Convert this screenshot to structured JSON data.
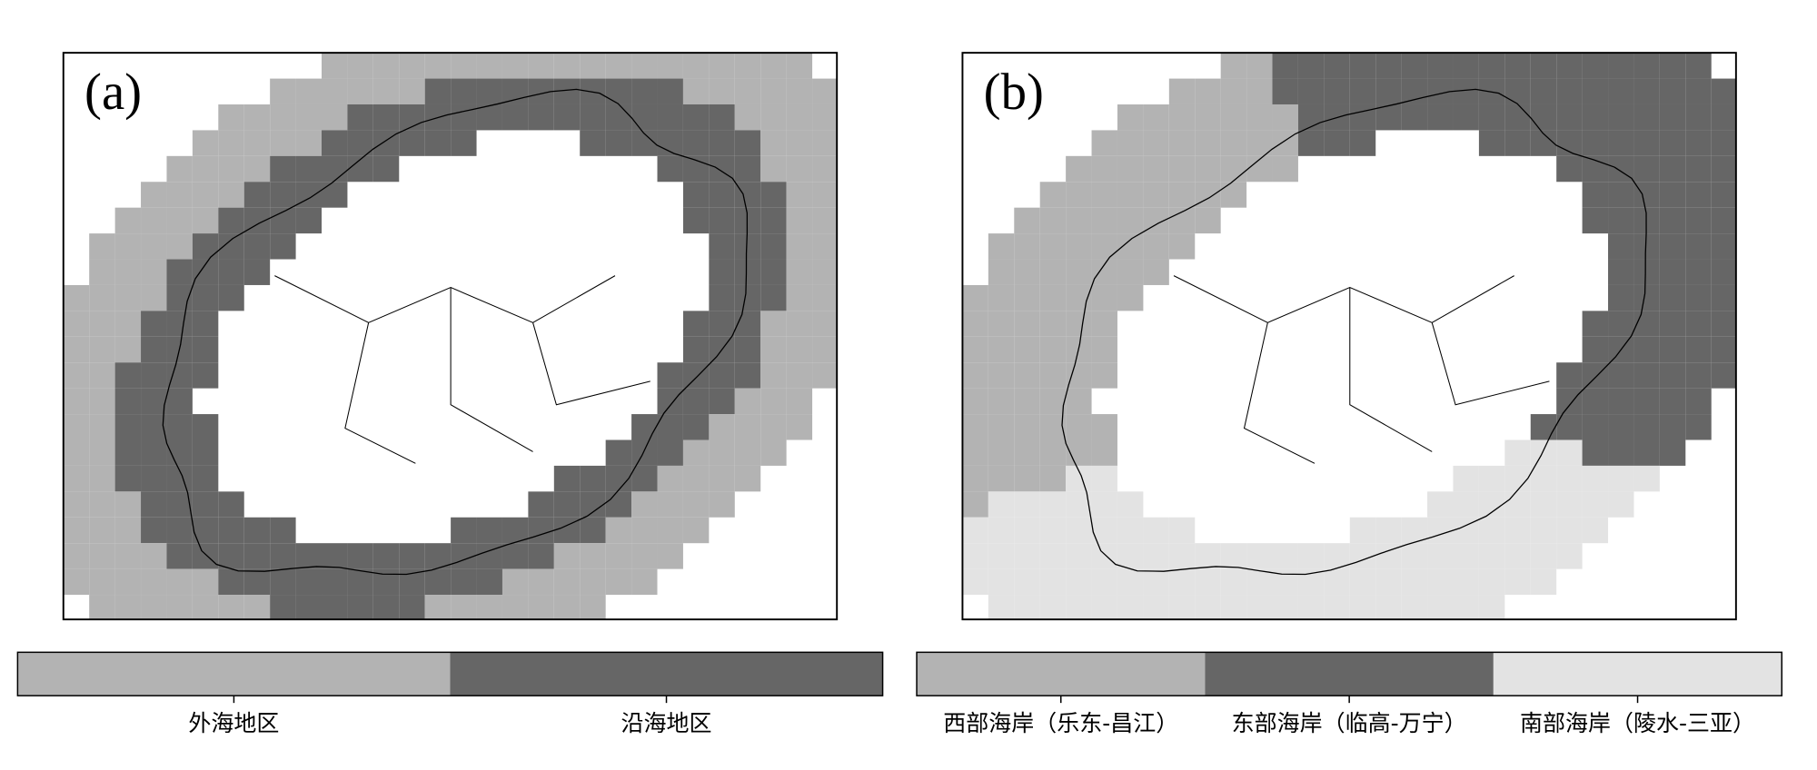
{
  "panels": [
    {
      "label": "(a)",
      "legend": [
        {
          "name": "外海地区",
          "color": "#b3b3b3"
        },
        {
          "name": "沿海地区",
          "color": "#666666"
        }
      ]
    },
    {
      "label": "(b)",
      "legend": [
        {
          "name": "西部海岸（乐东-昌江）",
          "color": "#b3b3b3"
        },
        {
          "name": "东部海岸（临高-万宁）",
          "color": "#666666"
        },
        {
          "name": "南部海岸（陵水-三亚）",
          "color": "#e3e3e3"
        }
      ]
    }
  ]
}
